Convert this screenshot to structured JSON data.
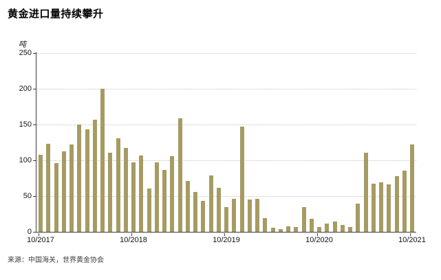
{
  "title": "黄金进口量持续攀升",
  "source_note": "来源：中国海关，世界黄金协会",
  "chart_data": {
    "type": "bar",
    "title": "黄金进口量持续攀升",
    "ylabel": "吨",
    "xlabel": "",
    "bar_color": "#a69b63",
    "axis_color": "#3c3c3c",
    "grid": "dotted horizontal",
    "legend": "none",
    "ylim": [
      0,
      250
    ],
    "yticks": [
      0,
      50,
      100,
      150,
      200,
      250
    ],
    "categories": [
      "10/2017",
      "11/2017",
      "12/2017",
      "01/2018",
      "02/2018",
      "03/2018",
      "04/2018",
      "05/2018",
      "06/2018",
      "07/2018",
      "08/2018",
      "09/2018",
      "10/2018",
      "11/2018",
      "12/2018",
      "01/2019",
      "02/2019",
      "03/2019",
      "04/2019",
      "05/2019",
      "06/2019",
      "07/2019",
      "08/2019",
      "09/2019",
      "10/2019",
      "11/2019",
      "12/2019",
      "01/2020",
      "02/2020",
      "03/2020",
      "04/2020",
      "05/2020",
      "06/2020",
      "07/2020",
      "08/2020",
      "09/2020",
      "10/2020",
      "11/2020",
      "12/2020",
      "01/2021",
      "02/2021",
      "03/2021",
      "04/2021",
      "05/2021",
      "06/2021",
      "07/2021",
      "08/2021",
      "09/2021",
      "10/2021"
    ],
    "values": [
      108,
      123,
      96,
      113,
      122,
      150,
      143,
      157,
      200,
      111,
      131,
      117,
      97,
      107,
      61,
      97,
      87,
      106,
      159,
      71,
      56,
      43,
      79,
      62,
      35,
      46,
      147,
      45,
      46,
      19,
      6,
      4,
      8,
      7,
      35,
      18,
      7,
      12,
      14,
      10,
      7,
      39,
      111,
      67,
      69,
      66,
      78,
      86,
      122
    ],
    "xtick_positions": [
      0,
      12,
      24,
      36,
      48
    ],
    "xtick_labels": [
      "10/2017",
      "10/2018",
      "10/2019",
      "10/2020",
      "10/2021"
    ]
  }
}
